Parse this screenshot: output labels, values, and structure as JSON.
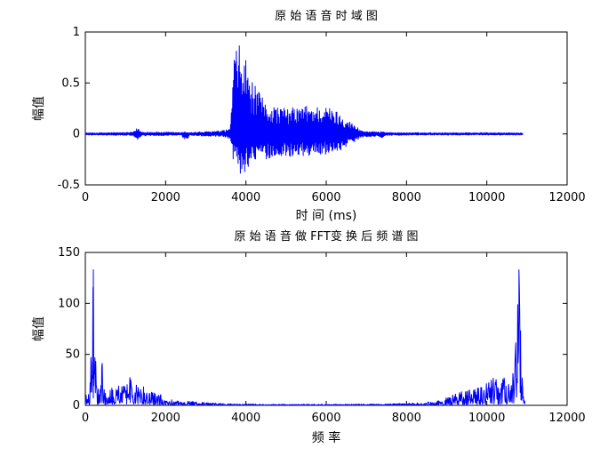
{
  "figure": {
    "background": "#ffffff"
  },
  "chart_data": [
    {
      "type": "line",
      "title": "原 始 语 音 时 域 图",
      "xlabel": "时 间 (ms)",
      "ylabel": "幅值",
      "xlim": [
        0,
        12000
      ],
      "ylim": [
        -0.5,
        1
      ],
      "xticks": [
        0,
        2000,
        4000,
        6000,
        8000,
        10000,
        12000
      ],
      "xtick_labels": [
        "0",
        "2000",
        "4000",
        "6000",
        "8000",
        "10000",
        "12000"
      ],
      "yticks": [
        -0.5,
        0,
        0.5,
        1
      ],
      "ytick_labels": [
        "-0.5",
        "0",
        "0.5",
        "1"
      ],
      "grid": false,
      "series": [
        {
          "color": "#0000ff",
          "style": "dense-oscillation",
          "x": [
            0,
            1100,
            1200,
            1300,
            1400,
            2400,
            2500,
            2600,
            3400,
            3600,
            3700,
            3800,
            3900,
            4000,
            4100,
            4500,
            5000,
            5500,
            6000,
            6300,
            6600,
            6900,
            7300,
            7400,
            7500,
            8000,
            9000,
            10000,
            10900
          ],
          "ymax": [
            0.01,
            0.015,
            0.02,
            0.06,
            0.02,
            0.015,
            0.02,
            0.015,
            0.03,
            0.05,
            0.75,
            0.9,
            0.8,
            0.75,
            0.55,
            0.3,
            0.25,
            0.28,
            0.27,
            0.22,
            0.12,
            0.03,
            0.02,
            0.03,
            0.015,
            0.012,
            0.012,
            0.012,
            0.01
          ],
          "ymin": [
            -0.01,
            -0.015,
            -0.02,
            -0.07,
            -0.02,
            -0.015,
            -0.08,
            -0.015,
            -0.03,
            -0.05,
            -0.3,
            -0.35,
            -0.45,
            -0.35,
            -0.3,
            -0.25,
            -0.22,
            -0.22,
            -0.2,
            -0.17,
            -0.1,
            -0.03,
            -0.02,
            -0.06,
            -0.015,
            -0.012,
            -0.012,
            -0.012,
            -0.01
          ]
        }
      ]
    },
    {
      "type": "line",
      "title": "原 始 语 音 做 FFT变 换 后 频 谱 图",
      "xlabel": "频 率",
      "ylabel": "幅值",
      "xlim": [
        0,
        12000
      ],
      "ylim": [
        0,
        150
      ],
      "xticks": [
        0,
        2000,
        4000,
        6000,
        8000,
        10000,
        12000
      ],
      "xtick_labels": [
        "0",
        "2000",
        "4000",
        "6000",
        "8000",
        "10000",
        "12000"
      ],
      "yticks": [
        0,
        50,
        100,
        150
      ],
      "ytick_labels": [
        "0",
        "50",
        "100",
        "150"
      ],
      "grid": false,
      "series": [
        {
          "color": "#0000ff",
          "style": "spectrum",
          "x": [
            0,
            100,
            200,
            300,
            400,
            500,
            600,
            700,
            800,
            1000,
            1100,
            1200,
            1400,
            1600,
            1800,
            2000,
            2200,
            2600,
            3000,
            3400,
            3800,
            4500,
            5500,
            6500,
            7500,
            8000,
            8400,
            8800,
            9000,
            9200,
            9400,
            9600,
            9800,
            9900,
            10100,
            10200,
            10300,
            10400,
            10500,
            10600,
            10700,
            10800,
            10900,
            10950
          ],
          "ymax": [
            10,
            12,
            133,
            10,
            53,
            12,
            27,
            18,
            22,
            22,
            32,
            20,
            20,
            14,
            12,
            8,
            5,
            4,
            3,
            2,
            1.5,
            1,
            1,
            1,
            1.5,
            2,
            3,
            5,
            8,
            12,
            14,
            17,
            20,
            20,
            25,
            28,
            22,
            27,
            28,
            20,
            53,
            133,
            12,
            10
          ],
          "peaks_x": [
            200,
            10800
          ],
          "peaks_y": [
            133,
            133
          ]
        }
      ]
    }
  ]
}
